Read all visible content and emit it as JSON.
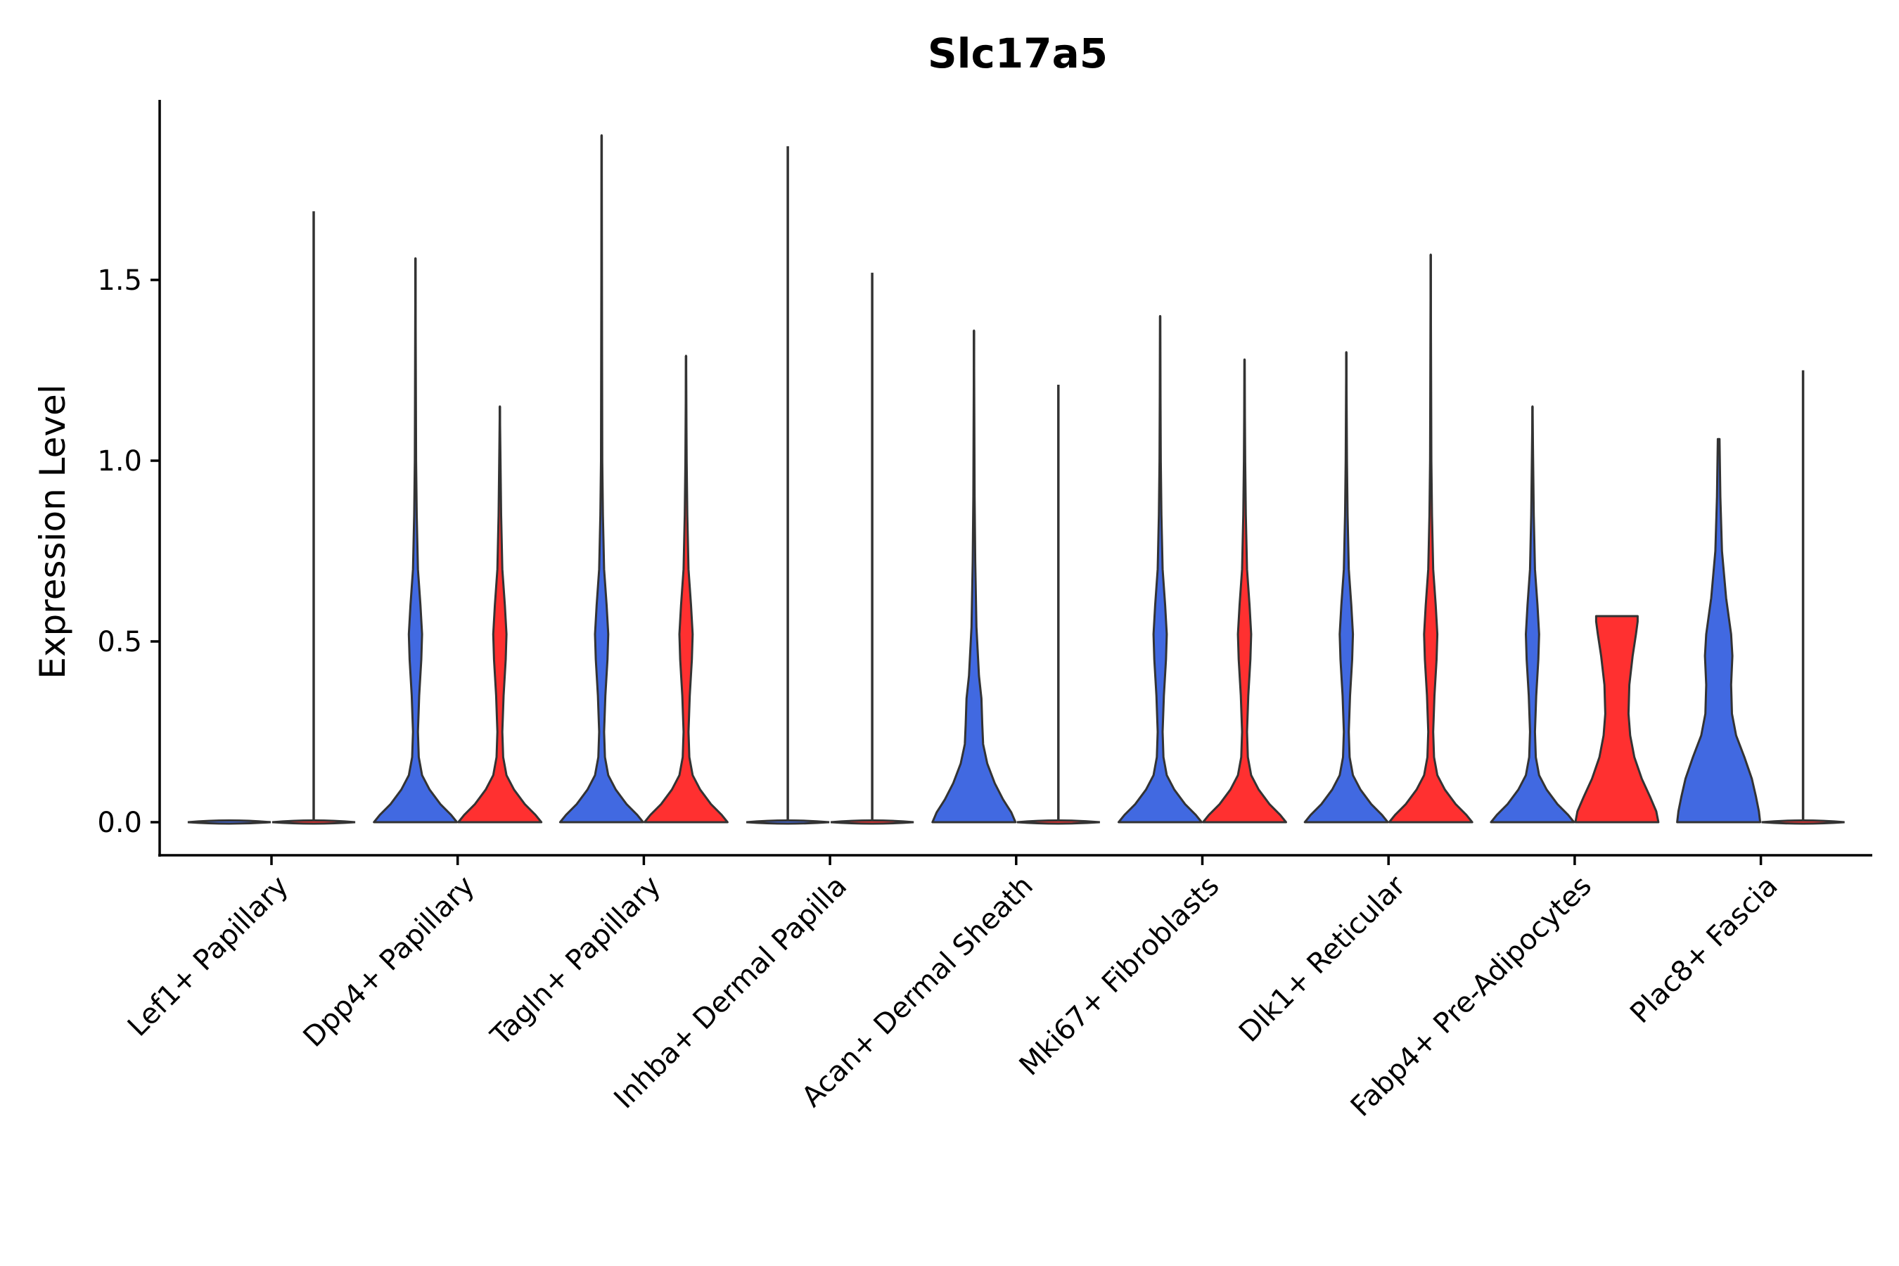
{
  "chart_data": {
    "type": "violin",
    "title": "Slc17a5",
    "xlabel": "",
    "ylabel": "Expression Level",
    "ylim": [
      -0.09,
      2.0
    ],
    "yticks": [
      0.0,
      0.5,
      1.0,
      1.5
    ],
    "ytick_labels": [
      "0.0",
      "0.5",
      "1.0",
      "1.5"
    ],
    "categories": [
      "Lef1+ Papillary",
      "Dpp4+ Papillary",
      "Tagln+ Papillary",
      "Inhba+ Dermal Papilla",
      "Acan+ Dermal Sheath",
      "Mki67+ Fibroblasts",
      "Dlk1+ Reticular",
      "Fabp4+ Pre-Adipocytes",
      "Plac8+ Fascia"
    ],
    "series_colors": {
      "blue": "#4169E1",
      "red": "#FF3030"
    },
    "violins": [
      {
        "category_index": 0,
        "side": "left",
        "color": "#4169E1",
        "max": 0.0,
        "shape": "flat"
      },
      {
        "category_index": 0,
        "side": "right",
        "color": "#FF3030",
        "max": 1.69,
        "shape": "flat"
      },
      {
        "category_index": 1,
        "side": "left",
        "color": "#4169E1",
        "max": 1.56,
        "shape": "standard"
      },
      {
        "category_index": 1,
        "side": "right",
        "color": "#FF3030",
        "max": 1.15,
        "shape": "standard"
      },
      {
        "category_index": 2,
        "side": "left",
        "color": "#4169E1",
        "max": 1.9,
        "shape": "standard"
      },
      {
        "category_index": 2,
        "side": "right",
        "color": "#FF3030",
        "max": 1.29,
        "shape": "standard"
      },
      {
        "category_index": 3,
        "side": "left",
        "color": "#4169E1",
        "max": 1.87,
        "shape": "flat"
      },
      {
        "category_index": 3,
        "side": "right",
        "color": "#FF3030",
        "max": 1.52,
        "shape": "flat"
      },
      {
        "category_index": 4,
        "side": "left",
        "color": "#4169E1",
        "max": 1.36,
        "shape": "acan"
      },
      {
        "category_index": 4,
        "side": "right",
        "color": "#FF3030",
        "max": 1.21,
        "shape": "flat"
      },
      {
        "category_index": 5,
        "side": "left",
        "color": "#4169E1",
        "max": 1.4,
        "shape": "standard"
      },
      {
        "category_index": 5,
        "side": "right",
        "color": "#FF3030",
        "max": 1.28,
        "shape": "standard"
      },
      {
        "category_index": 6,
        "side": "left",
        "color": "#4169E1",
        "max": 1.3,
        "shape": "standard"
      },
      {
        "category_index": 6,
        "side": "right",
        "color": "#FF3030",
        "max": 1.57,
        "shape": "standard"
      },
      {
        "category_index": 7,
        "side": "left",
        "color": "#4169E1",
        "max": 1.15,
        "shape": "standard"
      },
      {
        "category_index": 7,
        "side": "right",
        "color": "#FF3030",
        "max": 0.57,
        "shape": "capped"
      },
      {
        "category_index": 8,
        "side": "left",
        "color": "#4169E1",
        "max": 1.06,
        "shape": "plac8"
      },
      {
        "category_index": 8,
        "side": "right",
        "color": "#FF3030",
        "max": 1.25,
        "shape": "flat"
      }
    ]
  }
}
